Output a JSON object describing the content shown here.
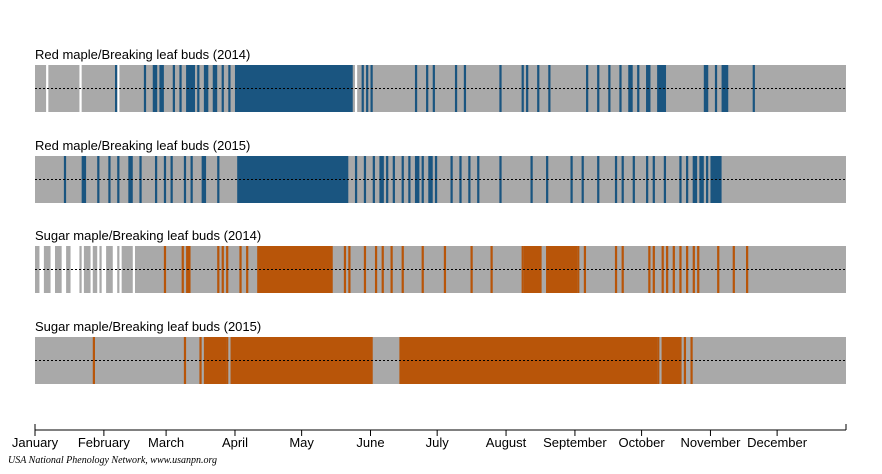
{
  "chart_data": {
    "type": "timeline",
    "x_unit": "day_of_year",
    "x_range": [
      1,
      365
    ],
    "months": [
      "January",
      "February",
      "March",
      "April",
      "May",
      "June",
      "July",
      "August",
      "September",
      "October",
      "November",
      "December"
    ],
    "month_start_days": [
      1,
      32,
      60,
      91,
      121,
      152,
      182,
      213,
      244,
      274,
      305,
      335
    ],
    "no_observation_color": "#ffffff",
    "series": [
      {
        "title": "Red maple/Breaking leaf buds (2014)",
        "base_color": "#a9a9a9",
        "yes_color": "#1a5580",
        "observed_ranges": [
          [
            1,
            5
          ],
          [
            7,
            20
          ],
          [
            22,
            37
          ],
          [
            39,
            144
          ],
          [
            146,
            365
          ]
        ],
        "yes_ranges": [
          [
            37,
            37
          ],
          [
            50,
            50
          ],
          [
            54,
            55
          ],
          [
            57,
            58
          ],
          [
            63,
            63
          ],
          [
            66,
            66
          ],
          [
            69,
            72
          ],
          [
            74,
            74
          ],
          [
            77,
            78
          ],
          [
            81,
            82
          ],
          [
            85,
            85
          ],
          [
            88,
            88
          ],
          [
            91,
            143
          ],
          [
            148,
            148
          ],
          [
            150,
            150
          ],
          [
            152,
            152
          ],
          [
            172,
            172
          ],
          [
            177,
            177
          ],
          [
            180,
            180
          ],
          [
            190,
            190
          ],
          [
            194,
            194
          ],
          [
            210,
            210
          ],
          [
            220,
            220
          ],
          [
            222,
            222
          ],
          [
            227,
            227
          ],
          [
            232,
            232
          ],
          [
            249,
            249
          ],
          [
            254,
            254
          ],
          [
            259,
            259
          ],
          [
            264,
            264
          ],
          [
            268,
            269
          ],
          [
            272,
            272
          ],
          [
            276,
            277
          ],
          [
            281,
            284
          ],
          [
            302,
            303
          ],
          [
            307,
            307
          ],
          [
            310,
            312
          ],
          [
            324,
            324
          ]
        ]
      },
      {
        "title": "Red maple/Breaking leaf buds (2015)",
        "base_color": "#a9a9a9",
        "yes_color": "#1a5580",
        "observed_ranges": [
          [
            1,
            365
          ]
        ],
        "yes_ranges": [
          [
            14,
            14
          ],
          [
            22,
            23
          ],
          [
            29,
            29
          ],
          [
            34,
            34
          ],
          [
            38,
            38
          ],
          [
            43,
            44
          ],
          [
            48,
            48
          ],
          [
            55,
            55
          ],
          [
            59,
            59
          ],
          [
            62,
            62
          ],
          [
            68,
            68
          ],
          [
            71,
            71
          ],
          [
            76,
            77
          ],
          [
            83,
            83
          ],
          [
            92,
            141
          ],
          [
            145,
            145
          ],
          [
            149,
            149
          ],
          [
            153,
            153
          ],
          [
            156,
            157
          ],
          [
            159,
            159
          ],
          [
            162,
            162
          ],
          [
            166,
            166
          ],
          [
            169,
            169
          ],
          [
            172,
            173
          ],
          [
            175,
            175
          ],
          [
            178,
            179
          ],
          [
            181,
            181
          ],
          [
            188,
            188
          ],
          [
            192,
            192
          ],
          [
            196,
            196
          ],
          [
            200,
            200
          ],
          [
            210,
            210
          ],
          [
            224,
            224
          ],
          [
            231,
            231
          ],
          [
            242,
            242
          ],
          [
            247,
            247
          ],
          [
            254,
            254
          ],
          [
            262,
            262
          ],
          [
            265,
            265
          ],
          [
            270,
            270
          ],
          [
            276,
            276
          ],
          [
            279,
            279
          ],
          [
            284,
            284
          ],
          [
            291,
            291
          ],
          [
            294,
            294
          ],
          [
            297,
            298
          ],
          [
            300,
            301
          ],
          [
            303,
            303
          ],
          [
            305,
            309
          ]
        ]
      },
      {
        "title": "Sugar maple/Breaking leaf buds (2014)",
        "base_color": "#a9a9a9",
        "yes_color": "#b85509",
        "observed_ranges": [
          [
            1,
            2
          ],
          [
            5,
            7
          ],
          [
            10,
            12
          ],
          [
            15,
            16
          ],
          [
            21,
            21
          ],
          [
            23,
            25
          ],
          [
            27,
            28
          ],
          [
            30,
            30
          ],
          [
            33,
            35
          ],
          [
            38,
            38
          ],
          [
            40,
            44
          ],
          [
            46,
            365
          ]
        ],
        "yes_ranges": [
          [
            59,
            59
          ],
          [
            67,
            67
          ],
          [
            69,
            70
          ],
          [
            83,
            83
          ],
          [
            85,
            85
          ],
          [
            87,
            87
          ],
          [
            93,
            93
          ],
          [
            96,
            96
          ],
          [
            101,
            134
          ],
          [
            140,
            140
          ],
          [
            142,
            142
          ],
          [
            149,
            149
          ],
          [
            154,
            154
          ],
          [
            157,
            157
          ],
          [
            161,
            161
          ],
          [
            166,
            166
          ],
          [
            175,
            175
          ],
          [
            185,
            185
          ],
          [
            197,
            197
          ],
          [
            206,
            206
          ],
          [
            220,
            220
          ],
          [
            223,
            223
          ],
          [
            245,
            245
          ],
          [
            248,
            248
          ],
          [
            262,
            262
          ],
          [
            265,
            265
          ],
          [
            277,
            277
          ],
          [
            279,
            279
          ],
          [
            283,
            283
          ],
          [
            285,
            285
          ],
          [
            288,
            288
          ],
          [
            291,
            291
          ],
          [
            294,
            294
          ],
          [
            297,
            297
          ],
          [
            299,
            299
          ],
          [
            308,
            308
          ],
          [
            315,
            315
          ],
          [
            321,
            321
          ]
        ],
        "yes_ranges_wide": [
          [
            221,
            228
          ],
          [
            231,
            244
          ]
        ]
      },
      {
        "title": "Sugar maple/Breaking leaf buds (2015)",
        "base_color": "#a9a9a9",
        "yes_color": "#b85509",
        "observed_ranges": [
          [
            1,
            365
          ]
        ],
        "yes_ranges": [
          [
            27,
            27
          ],
          [
            68,
            68
          ],
          [
            75,
            75
          ],
          [
            77,
            86
          ],
          [
            87,
            87
          ],
          [
            89,
            152
          ],
          [
            165,
            280
          ],
          [
            281,
            281
          ],
          [
            283,
            291
          ],
          [
            293,
            293
          ],
          [
            296,
            296
          ]
        ]
      }
    ],
    "attribution": "USA National Phenology Network, www.usanpn.org"
  }
}
